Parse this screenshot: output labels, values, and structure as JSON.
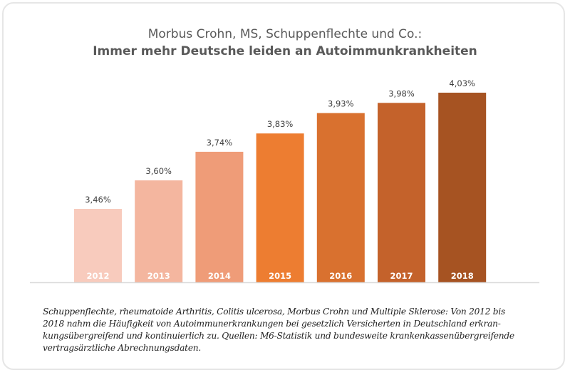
{
  "title": "Morbus Crohn, MS, Schuppenflechte und Co.:",
  "subtitle": "Immer mehr Deutsche leiden an Autoimmunkrankheiten",
  "caption_lines": [
    "Schuppenflechte, rheumatoide Arthritis, Colitis ulcerosa, Morbus Crohn und Multiple Sklerose: Von 2012 bis",
    "2018 nahm die Häufigkeit von Autoimmunerkrankungen bei gesetzlich Versicherten in Deutschland erkran-",
    "kungsübergreifend und kontinuierlich zu. Quellen: M6-Statistik und bundesweite krankenkassenübergreifende",
    "vertragsärztliche Abrechnungsdaten."
  ],
  "chart_data": {
    "type": "bar",
    "title": "Morbus Crohn, MS, Schuppenflechte und Co.: Immer mehr Deutsche leiden an Autoimmunkrankheiten",
    "xlabel": "",
    "ylabel": "",
    "categories": [
      "2012",
      "2013",
      "2014",
      "2015",
      "2016",
      "2017",
      "2018"
    ],
    "values": [
      3.46,
      3.6,
      3.74,
      3.83,
      3.93,
      3.98,
      4.03
    ],
    "value_labels": [
      "3,46%",
      "3,60%",
      "3,74%",
      "3,83%",
      "3,93%",
      "3,98%",
      "4,03%"
    ],
    "unit": "%",
    "ylim": [
      3.1,
      4.03
    ],
    "grid": false,
    "legend": "none",
    "colors": [
      "#f8cbbd",
      "#f4b69f",
      "#ef9c78",
      "#ed7d31",
      "#d9712f",
      "#c4622b",
      "#a65322"
    ],
    "label_color": "#ffffff",
    "value_label_color": "#404040",
    "axis_color": "#d9d9d9"
  }
}
